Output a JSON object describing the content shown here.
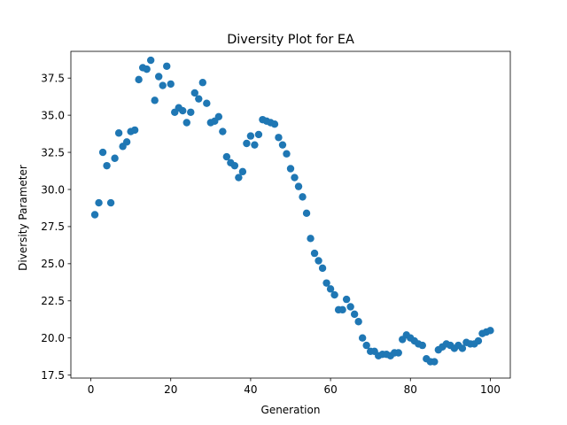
{
  "chart_data": {
    "type": "scatter",
    "title": "Diversity Plot for EA",
    "xlabel": "Generation",
    "ylabel": "Diversity Parameter",
    "xlim": [
      -5,
      105
    ],
    "ylim": [
      17.3,
      39.3
    ],
    "xticks": [
      0,
      20,
      40,
      60,
      80,
      100
    ],
    "yticks": [
      17.5,
      20.0,
      22.5,
      25.0,
      27.5,
      30.0,
      32.5,
      35.0,
      37.5
    ],
    "xtick_labels": [
      "0",
      "20",
      "40",
      "60",
      "80",
      "100"
    ],
    "ytick_labels": [
      "17.5",
      "20.0",
      "22.5",
      "25.0",
      "27.5",
      "30.0",
      "32.5",
      "35.0",
      "37.5"
    ],
    "grid": false,
    "marker_color": "#1f77b4",
    "x": [
      1,
      2,
      3,
      4,
      5,
      6,
      7,
      8,
      9,
      10,
      11,
      12,
      13,
      14,
      15,
      16,
      17,
      18,
      19,
      20,
      21,
      22,
      23,
      24,
      25,
      26,
      27,
      28,
      29,
      30,
      31,
      32,
      33,
      34,
      35,
      36,
      37,
      38,
      39,
      40,
      41,
      42,
      43,
      44,
      45,
      46,
      47,
      48,
      49,
      50,
      51,
      52,
      53,
      54,
      55,
      56,
      57,
      58,
      59,
      60,
      61,
      62,
      63,
      64,
      65,
      66,
      67,
      68,
      69,
      70,
      71,
      72,
      73,
      74,
      75,
      76,
      77,
      78,
      79,
      80,
      81,
      82,
      83,
      84,
      85,
      86,
      87,
      88,
      89,
      90,
      91,
      92,
      93,
      94,
      95,
      96,
      97,
      98,
      99,
      100
    ],
    "y": [
      28.3,
      29.1,
      32.5,
      31.6,
      29.1,
      32.1,
      33.8,
      32.9,
      33.2,
      33.9,
      34.0,
      37.4,
      38.2,
      38.1,
      38.7,
      36.0,
      37.6,
      37.0,
      38.3,
      37.1,
      35.2,
      35.5,
      35.3,
      34.5,
      35.2,
      36.5,
      36.1,
      37.2,
      35.8,
      34.5,
      34.6,
      34.9,
      33.9,
      32.2,
      31.8,
      31.6,
      30.8,
      31.2,
      33.1,
      33.6,
      33.0,
      33.7,
      34.7,
      34.6,
      34.5,
      34.4,
      33.5,
      33.0,
      32.4,
      31.4,
      30.8,
      30.2,
      29.5,
      28.4,
      26.7,
      25.7,
      25.2,
      24.7,
      23.7,
      23.3,
      22.9,
      21.9,
      21.9,
      22.6,
      22.1,
      21.6,
      21.1,
      20.0,
      19.5,
      19.1,
      19.1,
      18.8,
      18.9,
      18.9,
      18.8,
      19.0,
      19.0,
      19.9,
      20.2,
      20.0,
      19.8,
      19.6,
      19.5,
      18.6,
      18.4,
      18.4,
      19.2,
      19.4,
      19.6,
      19.5,
      19.3,
      19.5,
      19.3,
      19.7,
      19.6,
      19.6,
      19.8,
      20.3,
      20.4,
      20.5
    ]
  }
}
